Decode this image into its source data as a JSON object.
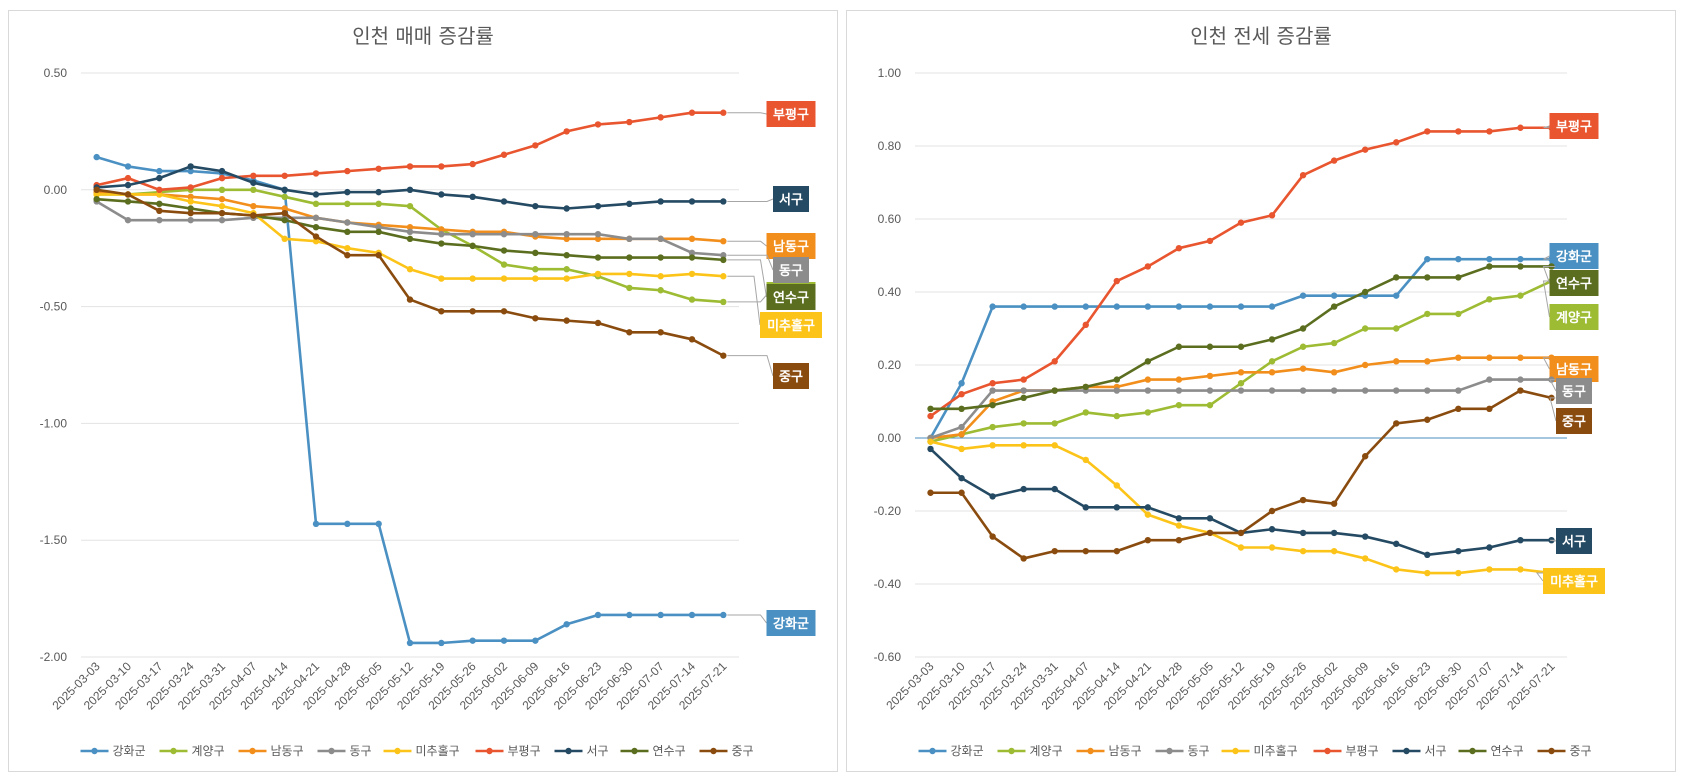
{
  "chart_data": [
    {
      "type": "line",
      "title": "인천 매매 증감률",
      "ylim": [
        -2.0,
        0.5
      ],
      "yticks": [
        0.5,
        0.0,
        -0.5,
        -1.0,
        -1.5,
        -2.0
      ],
      "ytick_labels": [
        "0.50",
        "0.00",
        "-0.50",
        "-1.00",
        "-1.50",
        "-2.00"
      ],
      "grid": true,
      "legend": "bottom",
      "categories": [
        "2025-03-03",
        "2025-03-10",
        "2025-03-17",
        "2025-03-24",
        "2025-03-31",
        "2025-04-07",
        "2025-04-14",
        "2025-04-21",
        "2025-04-28",
        "2025-05-05",
        "2025-05-12",
        "2025-05-19",
        "2025-05-26",
        "2025-06-02",
        "2025-06-09",
        "2025-06-16",
        "2025-06-23",
        "2025-06-30",
        "2025-07-07",
        "2025-07-14",
        "2025-07-21"
      ],
      "series": [
        {
          "name": "강화군",
          "color": "#4a90c2",
          "values": [
            0.14,
            0.1,
            0.08,
            0.08,
            0.07,
            0.04,
            0.0,
            -1.43,
            -1.43,
            -1.43,
            -1.94,
            -1.94,
            -1.93,
            -1.93,
            -1.93,
            -1.86,
            -1.82,
            -1.82,
            -1.82,
            -1.82,
            -1.82
          ]
        },
        {
          "name": "계양구",
          "color": "#9dbb33",
          "values": [
            -0.02,
            -0.02,
            -0.01,
            0.0,
            0.0,
            0.0,
            -0.03,
            -0.06,
            -0.06,
            -0.06,
            -0.07,
            -0.17,
            -0.24,
            -0.32,
            -0.34,
            -0.34,
            -0.37,
            -0.42,
            -0.43,
            -0.47,
            -0.48
          ]
        },
        {
          "name": "남동구",
          "color": "#f28e1c",
          "values": [
            -0.01,
            -0.02,
            -0.02,
            -0.03,
            -0.04,
            -0.07,
            -0.08,
            -0.12,
            -0.14,
            -0.15,
            -0.16,
            -0.17,
            -0.18,
            -0.18,
            -0.2,
            -0.21,
            -0.21,
            -0.21,
            -0.21,
            -0.21,
            -0.22
          ]
        },
        {
          "name": "동구",
          "color": "#8c8c8c",
          "values": [
            -0.05,
            -0.13,
            -0.13,
            -0.13,
            -0.13,
            -0.12,
            -0.12,
            -0.12,
            -0.14,
            -0.16,
            -0.18,
            -0.19,
            -0.19,
            -0.19,
            -0.19,
            -0.19,
            -0.19,
            -0.21,
            -0.21,
            -0.27,
            -0.28
          ]
        },
        {
          "name": "미추홀구",
          "color": "#fcc419",
          "values": [
            -0.02,
            -0.02,
            -0.02,
            -0.05,
            -0.07,
            -0.1,
            -0.21,
            -0.22,
            -0.25,
            -0.27,
            -0.34,
            -0.38,
            -0.38,
            -0.38,
            -0.38,
            -0.38,
            -0.36,
            -0.36,
            -0.37,
            -0.36,
            -0.37
          ]
        },
        {
          "name": "부평구",
          "color": "#e8552f",
          "values": [
            0.02,
            0.05,
            0.0,
            0.01,
            0.05,
            0.06,
            0.06,
            0.07,
            0.08,
            0.09,
            0.1,
            0.1,
            0.11,
            0.15,
            0.19,
            0.25,
            0.28,
            0.29,
            0.31,
            0.33,
            0.33
          ]
        },
        {
          "name": "서구",
          "color": "#254a63",
          "values": [
            0.01,
            0.02,
            0.05,
            0.1,
            0.08,
            0.03,
            0.0,
            -0.02,
            -0.01,
            -0.01,
            0.0,
            -0.02,
            -0.03,
            -0.05,
            -0.07,
            -0.08,
            -0.07,
            -0.06,
            -0.05,
            -0.05,
            -0.05
          ]
        },
        {
          "name": "연수구",
          "color": "#5b6e1f",
          "values": [
            -0.04,
            -0.05,
            -0.06,
            -0.08,
            -0.1,
            -0.11,
            -0.13,
            -0.16,
            -0.18,
            -0.18,
            -0.21,
            -0.23,
            -0.24,
            -0.26,
            -0.27,
            -0.28,
            -0.29,
            -0.29,
            -0.29,
            -0.29,
            -0.3
          ]
        },
        {
          "name": "중구",
          "color": "#8a4b0e",
          "values": [
            0.0,
            -0.02,
            -0.09,
            -0.1,
            -0.1,
            -0.11,
            -0.1,
            -0.2,
            -0.28,
            -0.28,
            -0.47,
            -0.52,
            -0.52,
            -0.52,
            -0.55,
            -0.56,
            -0.57,
            -0.61,
            -0.61,
            -0.64,
            -0.71
          ]
        }
      ]
    },
    {
      "type": "line",
      "title": "인천 전세 증감률",
      "ylim": [
        -0.6,
        1.0
      ],
      "yticks": [
        1.0,
        0.8,
        0.6,
        0.4,
        0.2,
        0.0,
        -0.2,
        -0.4,
        -0.6
      ],
      "ytick_labels": [
        "1.00",
        "0.80",
        "0.60",
        "0.40",
        "0.20",
        "0.00",
        "-0.20",
        "-0.40",
        "-0.60"
      ],
      "grid": true,
      "legend": "bottom",
      "categories": [
        "2025-03-03",
        "2025-03-10",
        "2025-03-17",
        "2025-03-24",
        "2025-03-31",
        "2025-04-07",
        "2025-04-14",
        "2025-04-21",
        "2025-04-28",
        "2025-05-05",
        "2025-05-12",
        "2025-05-19",
        "2025-05-26",
        "2025-06-02",
        "2025-06-09",
        "2025-06-16",
        "2025-06-23",
        "2025-06-30",
        "2025-07-07",
        "2025-07-14",
        "2025-07-21"
      ],
      "series": [
        {
          "name": "강화군",
          "color": "#4a90c2",
          "values": [
            0.0,
            0.15,
            0.36,
            0.36,
            0.36,
            0.36,
            0.36,
            0.36,
            0.36,
            0.36,
            0.36,
            0.36,
            0.39,
            0.39,
            0.39,
            0.39,
            0.49,
            0.49,
            0.49,
            0.49,
            0.49
          ]
        },
        {
          "name": "계양구",
          "color": "#9dbb33",
          "values": [
            -0.01,
            0.01,
            0.03,
            0.04,
            0.04,
            0.07,
            0.06,
            0.07,
            0.09,
            0.09,
            0.15,
            0.21,
            0.25,
            0.26,
            0.3,
            0.3,
            0.34,
            0.34,
            0.38,
            0.39,
            0.43
          ]
        },
        {
          "name": "남동구",
          "color": "#f28e1c",
          "values": [
            0.0,
            0.01,
            0.1,
            0.13,
            0.13,
            0.14,
            0.14,
            0.16,
            0.16,
            0.17,
            0.18,
            0.18,
            0.19,
            0.18,
            0.2,
            0.21,
            0.21,
            0.22,
            0.22,
            0.22,
            0.22
          ]
        },
        {
          "name": "동구",
          "color": "#8c8c8c",
          "values": [
            0.0,
            0.03,
            0.13,
            0.13,
            0.13,
            0.13,
            0.13,
            0.13,
            0.13,
            0.13,
            0.13,
            0.13,
            0.13,
            0.13,
            0.13,
            0.13,
            0.13,
            0.13,
            0.16,
            0.16,
            0.16
          ]
        },
        {
          "name": "미추홀구",
          "color": "#fcc419",
          "values": [
            -0.01,
            -0.03,
            -0.02,
            -0.02,
            -0.02,
            -0.06,
            -0.13,
            -0.21,
            -0.24,
            -0.26,
            -0.3,
            -0.3,
            -0.31,
            -0.31,
            -0.33,
            -0.36,
            -0.37,
            -0.37,
            -0.36,
            -0.36,
            -0.37
          ]
        },
        {
          "name": "부평구",
          "color": "#e8552f",
          "values": [
            0.06,
            0.12,
            0.15,
            0.16,
            0.21,
            0.31,
            0.43,
            0.47,
            0.52,
            0.54,
            0.59,
            0.61,
            0.72,
            0.76,
            0.79,
            0.81,
            0.84,
            0.84,
            0.84,
            0.85,
            0.85
          ]
        },
        {
          "name": "서구",
          "color": "#254a63",
          "values": [
            -0.03,
            -0.11,
            -0.16,
            -0.14,
            -0.14,
            -0.19,
            -0.19,
            -0.19,
            -0.22,
            -0.22,
            -0.26,
            -0.25,
            -0.26,
            -0.26,
            -0.27,
            -0.29,
            -0.32,
            -0.31,
            -0.3,
            -0.28,
            -0.28
          ]
        },
        {
          "name": "연수구",
          "color": "#5b6e1f",
          "values": [
            0.08,
            0.08,
            0.09,
            0.11,
            0.13,
            0.14,
            0.16,
            0.21,
            0.25,
            0.25,
            0.25,
            0.27,
            0.3,
            0.36,
            0.4,
            0.44,
            0.44,
            0.44,
            0.47,
            0.47,
            0.47
          ]
        },
        {
          "name": "중구",
          "color": "#8a4b0e",
          "values": [
            -0.15,
            -0.15,
            -0.27,
            -0.33,
            -0.31,
            -0.31,
            -0.31,
            -0.28,
            -0.28,
            -0.26,
            -0.26,
            -0.2,
            -0.17,
            -0.18,
            -0.05,
            0.04,
            0.05,
            0.08,
            0.08,
            0.13,
            0.11
          ]
        }
      ]
    }
  ]
}
